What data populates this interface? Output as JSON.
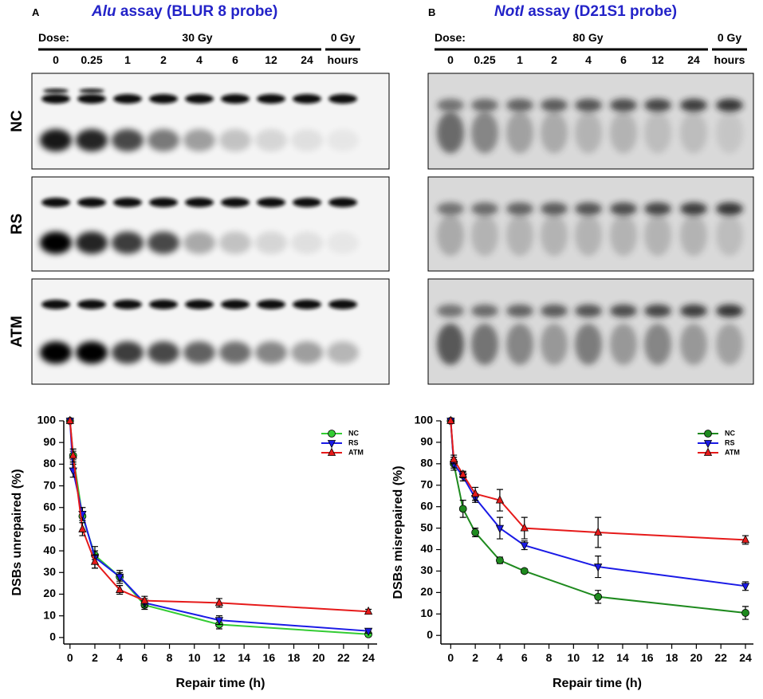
{
  "gels": [
    {
      "letter": "A",
      "title_italic": "Alu",
      "title": " assay (BLUR 8 probe)",
      "dose_label": "Dose:",
      "dose": "30 Gy",
      "control": "0 Gy",
      "lanes": [
        "0",
        "0.25",
        "1",
        "2",
        "4",
        "6",
        "12",
        "24"
      ],
      "unit": "hours"
    },
    {
      "letter": "B",
      "title_italic": "NotI",
      "title": " assay (D21S1 probe)",
      "dose_label": "Dose:",
      "dose": "80 Gy",
      "control": "0 Gy",
      "lanes": [
        "0",
        "0.25",
        "1",
        "2",
        "4",
        "6",
        "12",
        "24"
      ],
      "unit": "hours"
    }
  ],
  "gel_rows": [
    "NC",
    "RS",
    "ATM"
  ],
  "chart_data": [
    {
      "type": "line",
      "xlabel": "Repair time (h)",
      "ylabel": "DSBs unrepaired (%)",
      "x": [
        0,
        0.25,
        1,
        2,
        4,
        6,
        12,
        24
      ],
      "xlim": [
        -0.5,
        24.7
      ],
      "ylim": [
        -3,
        100
      ],
      "xticks": [
        0,
        2,
        4,
        6,
        8,
        10,
        12,
        14,
        16,
        18,
        20,
        22,
        24
      ],
      "yticks": [
        0,
        10,
        20,
        30,
        40,
        50,
        60,
        70,
        80,
        90,
        100
      ],
      "legend": "upper right",
      "series": [
        {
          "name": "NC",
          "color": "#33cc33",
          "marker": "circle",
          "values": [
            100,
            84,
            56,
            38,
            28,
            15,
            6,
            1.5
          ],
          "errors": [
            0,
            2,
            2,
            2,
            2,
            2,
            2,
            1
          ]
        },
        {
          "name": "RS",
          "color": "#1a1ae6",
          "marker": "triangle-down",
          "values": [
            100,
            77,
            57,
            37,
            28,
            16,
            8,
            3
          ],
          "errors": [
            0,
            3,
            3,
            5,
            3,
            2,
            2,
            1
          ]
        },
        {
          "name": "ATM",
          "color": "#e61a1a",
          "marker": "triangle-up",
          "values": [
            100,
            84,
            50,
            35,
            22,
            17,
            16,
            12
          ],
          "errors": [
            0,
            3,
            3,
            3,
            2,
            2,
            2,
            1
          ]
        }
      ]
    },
    {
      "type": "line",
      "xlabel": "Repair time (h)",
      "ylabel": "DSBs misrepaired (%)",
      "x": [
        0,
        0.25,
        1,
        2,
        4,
        6,
        12,
        24
      ],
      "xlim": [
        -0.8,
        24.65
      ],
      "ylim": [
        -4,
        100
      ],
      "xticks": [
        0,
        2,
        4,
        6,
        8,
        10,
        12,
        14,
        16,
        18,
        20,
        22,
        24
      ],
      "yticks": [
        0,
        10,
        20,
        30,
        40,
        50,
        60,
        70,
        80,
        90,
        100
      ],
      "legend": "upper right",
      "series": [
        {
          "name": "NC",
          "color": "#1e8a1e",
          "marker": "circle",
          "values": [
            100,
            80,
            59,
            48,
            35,
            30,
            18,
            10.5
          ],
          "errors": [
            0,
            3,
            4,
            2,
            1.5,
            1,
            3,
            3
          ]
        },
        {
          "name": "RS",
          "color": "#1a1ae6",
          "marker": "triangle-down",
          "values": [
            100,
            80,
            74,
            64,
            50,
            42,
            32,
            23
          ],
          "errors": [
            0,
            2,
            2,
            2,
            5,
            2,
            5,
            2
          ]
        },
        {
          "name": "ATM",
          "color": "#e61a1a",
          "marker": "triangle-up",
          "values": [
            100,
            82,
            75,
            66,
            63,
            50,
            48,
            44.5
          ],
          "errors": [
            0,
            2,
            1.5,
            3,
            5,
            5,
            7,
            2
          ]
        }
      ]
    }
  ]
}
